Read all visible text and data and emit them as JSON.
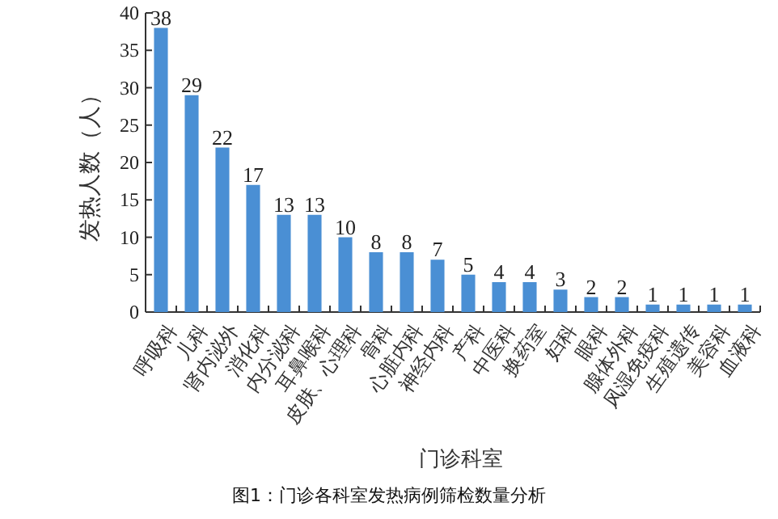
{
  "chart_data": {
    "type": "bar",
    "xlabel": "门诊科室",
    "ylabel": "发热人数（人）",
    "categories": [
      "呼吸科",
      "儿科",
      "肾内泌外",
      "消化科",
      "内分泌科",
      "耳鼻喉科",
      "皮肤、心理科",
      "骨科",
      "心脏内科",
      "神经内科",
      "产科",
      "中医科",
      "换药室",
      "妇科",
      "眼科",
      "腺体外科",
      "风湿免疫科",
      "生殖遗传",
      "美容科",
      "血液科"
    ],
    "values": [
      38,
      29,
      22,
      17,
      13,
      13,
      10,
      8,
      8,
      7,
      5,
      4,
      4,
      3,
      2,
      2,
      1,
      1,
      1,
      1
    ],
    "color": "#4a8fd4",
    "ylim": [
      0,
      40
    ],
    "yticks": [
      0,
      5,
      10,
      15,
      20,
      25,
      30,
      35,
      40
    ],
    "data_labels": true,
    "annotations": [
      "图1：门诊各科室发热病例筛检数量分析"
    ]
  }
}
